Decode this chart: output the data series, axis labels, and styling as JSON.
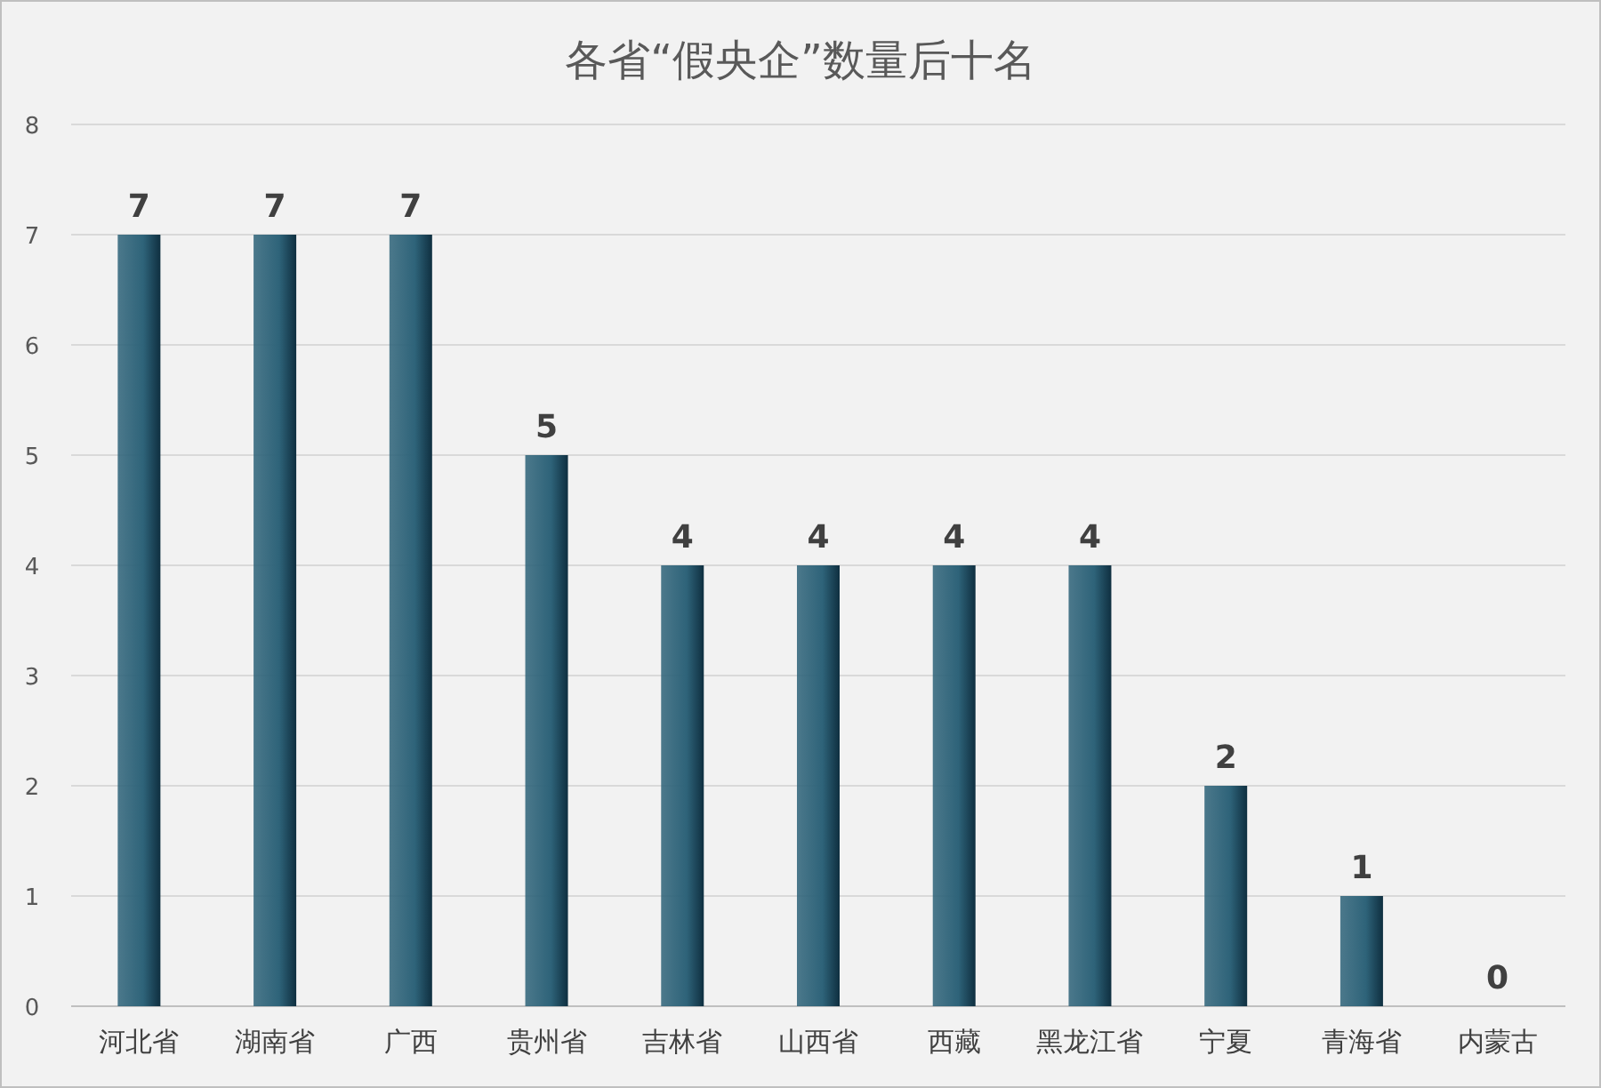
{
  "chart_data": {
    "type": "bar",
    "title": "各省“假央企”数量后十名",
    "categories": [
      "河北省",
      "湖南省",
      "广西",
      "贵州省",
      "吉林省",
      "山西省",
      "西藏",
      "黑龙江省",
      "宁夏",
      "青海省",
      "内蒙古"
    ],
    "values": [
      7,
      7,
      7,
      5,
      4,
      4,
      4,
      4,
      2,
      1,
      0
    ],
    "color": "#2e6379",
    "ylim": [
      0,
      8
    ],
    "yticks": [
      0,
      1,
      2,
      3,
      4,
      5,
      6,
      7,
      8
    ],
    "grid": "y",
    "data_labels": true
  }
}
